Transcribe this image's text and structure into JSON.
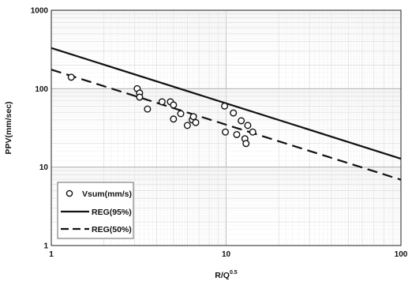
{
  "chart_data": {
    "type": "scatter",
    "x_scale": "log",
    "y_scale": "log",
    "xlim": [
      1,
      100
    ],
    "ylim": [
      1,
      1000
    ],
    "grid": true,
    "legend_position": "bottom-left",
    "xlabel_main": "R/Q",
    "xlabel_exp": "0.5",
    "ylabel": "PPV(mm/sec)",
    "x_tick_labels": [
      "1",
      "10",
      "100"
    ],
    "y_tick_labels": [
      "1",
      "10",
      "100",
      "1000"
    ],
    "scatter": {
      "name": "Vsum(mm/s)",
      "points": [
        {
          "x": 1.3,
          "y": 140
        },
        {
          "x": 3.1,
          "y": 100
        },
        {
          "x": 3.2,
          "y": 88
        },
        {
          "x": 3.2,
          "y": 78
        },
        {
          "x": 3.55,
          "y": 55
        },
        {
          "x": 4.3,
          "y": 68
        },
        {
          "x": 4.8,
          "y": 68
        },
        {
          "x": 5.0,
          "y": 62
        },
        {
          "x": 5.0,
          "y": 41
        },
        {
          "x": 5.5,
          "y": 48
        },
        {
          "x": 6.0,
          "y": 34
        },
        {
          "x": 6.4,
          "y": 40
        },
        {
          "x": 6.5,
          "y": 44
        },
        {
          "x": 6.7,
          "y": 37
        },
        {
          "x": 9.8,
          "y": 60
        },
        {
          "x": 9.9,
          "y": 28
        },
        {
          "x": 11.0,
          "y": 49
        },
        {
          "x": 11.5,
          "y": 26
        },
        {
          "x": 12.2,
          "y": 39
        },
        {
          "x": 12.8,
          "y": 23
        },
        {
          "x": 13.0,
          "y": 20
        },
        {
          "x": 13.3,
          "y": 34
        },
        {
          "x": 14.2,
          "y": 28
        }
      ]
    },
    "lines": [
      {
        "name": "REG(95%)",
        "style": "solid",
        "x": [
          1,
          100
        ],
        "y": [
          330,
          12.8
        ]
      },
      {
        "name": "REG(50%)",
        "style": "dashed",
        "x": [
          1,
          100
        ],
        "y": [
          175,
          6.9
        ]
      }
    ],
    "colors": {
      "line": "#111111",
      "grid": "#b9b9b9",
      "minor_grid": "#dedede",
      "marker_fill": "#ffffff"
    }
  }
}
